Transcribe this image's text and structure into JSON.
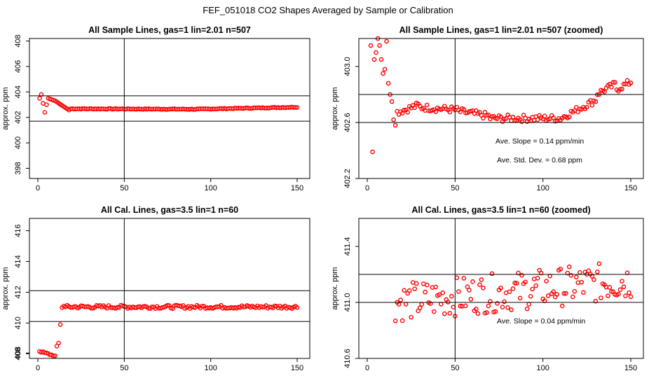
{
  "figure": {
    "title": "FEF_051018  CO2 Shapes Averaged by Sample or Calibration",
    "point_color": "#ff0000",
    "line_color": "#000000"
  },
  "chart_data": [
    {
      "type": "scatter",
      "title": "All Sample Lines, gas=1 lin=2.01 n=507",
      "xlabel": "",
      "ylabel": "approx. ppm",
      "xlim": [
        0,
        150
      ],
      "ylim": [
        397.2,
        408.2
      ],
      "xticks": [
        "0",
        "50",
        "100",
        "150"
      ],
      "yticks": [
        "398",
        "400",
        "402",
        "404",
        "406",
        "408"
      ],
      "ytick_values": [
        398,
        400,
        402,
        404,
        406,
        408
      ],
      "vline": 50,
      "hlines": [
        403.7,
        401.7
      ],
      "series": [
        {
          "name": "sample",
          "model": "sample_full"
        }
      ],
      "annotations": []
    },
    {
      "type": "scatter",
      "title": "All Sample Lines, gas=1 lin=2.01 n=507 (zoomed)",
      "xlabel": "",
      "ylabel": "approx. ppm",
      "xlim": [
        0,
        150
      ],
      "ylim": [
        402.2,
        403.2
      ],
      "xticks": [
        "0",
        "50",
        "100",
        "150"
      ],
      "yticks": [
        "402.2",
        "402.6",
        "403.0"
      ],
      "ytick_values": [
        402.2,
        402.6,
        403.0
      ],
      "vline": 50,
      "hlines": [
        402.8,
        402.6
      ],
      "series": [
        {
          "name": "sample",
          "model": "sample_zoom"
        }
      ],
      "annotations": [
        "Ave. Slope =  0.14  ppm/min",
        "Ave. Std. Dev. =  0.68  ppm"
      ]
    },
    {
      "type": "scatter",
      "title": "All Cal. Lines, gas=3.5 lin=1 n=60",
      "xlabel": "",
      "ylabel": "approx. ppm",
      "xlim": [
        0,
        150
      ],
      "ylim": [
        407.7,
        416.8
      ],
      "xticks": [
        "0",
        "50",
        "100",
        "150"
      ],
      "yticks": [
        "408",
        "408",
        "410",
        "412",
        "414",
        "416"
      ],
      "ytick_values": [
        408,
        408.05,
        410,
        412,
        414,
        416
      ],
      "vline": 50,
      "hlines": [
        412.1,
        410.1
      ],
      "series": [
        {
          "name": "cal",
          "model": "cal_full"
        }
      ],
      "annotations": []
    },
    {
      "type": "scatter",
      "title": "All Cal. Lines, gas=3.5 lin=1 n=60 (zoomed)",
      "xlabel": "",
      "ylabel": "approx. ppm",
      "xlim": [
        0,
        150
      ],
      "ylim": [
        410.6,
        411.6
      ],
      "xticks": [
        "0",
        "50",
        "100",
        "150"
      ],
      "yticks": [
        "410.6",
        "411.0",
        "411.4"
      ],
      "ytick_values": [
        410.6,
        411.0,
        411.4
      ],
      "vline": 50,
      "hlines": [
        411.2,
        411.0
      ],
      "series": [
        {
          "name": "cal",
          "model": "cal_zoom"
        }
      ],
      "annotations": [
        "Ave. Slope =  0.04  ppm/min"
      ]
    }
  ]
}
